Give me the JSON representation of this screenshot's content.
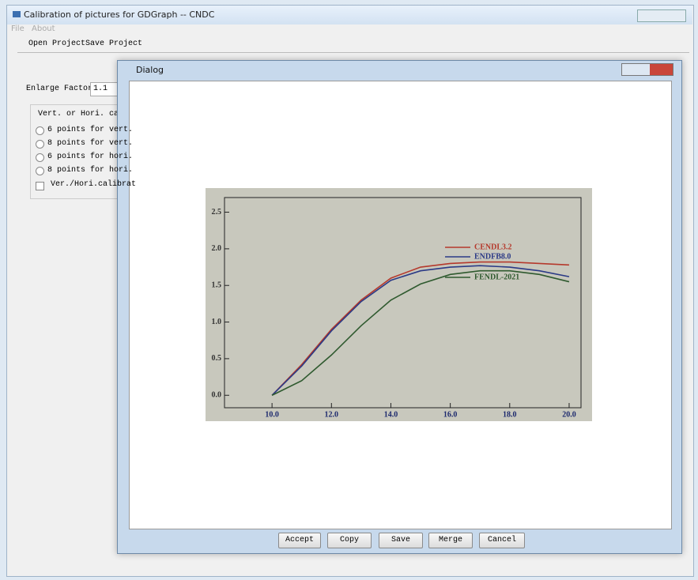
{
  "window": {
    "title": "Calibration of pictures for GDGraph -- CNDC",
    "menu": [
      "File",
      "About"
    ],
    "toolbar": [
      "Open Project",
      "Save Project"
    ]
  },
  "panel": {
    "enlarge_label": "Enlarge Factor:",
    "enlarge_value": "1.1",
    "group_title": "Vert. or Hori. calibra",
    "options": [
      "6 points for vert.",
      "8 points for vert.",
      "6 points for hori.",
      "8 points for hori."
    ],
    "checkbox": "Ver./Hori.calibrat"
  },
  "dialog": {
    "title": "Dialog",
    "buttons": [
      "Accept",
      "Copy",
      "Save",
      "Merge",
      "Cancel"
    ]
  },
  "chart_data": {
    "type": "line",
    "x": [
      10,
      11,
      12,
      13,
      14,
      15,
      16,
      17,
      18,
      19,
      20
    ],
    "series": [
      {
        "name": "CENDL3.2",
        "color": "#b5392c",
        "values": [
          0,
          0.42,
          0.9,
          1.3,
          1.6,
          1.75,
          1.8,
          1.82,
          1.82,
          1.8,
          1.78
        ]
      },
      {
        "name": "ENDFB8.0",
        "color": "#2b3a86",
        "values": [
          0,
          0.4,
          0.88,
          1.28,
          1.57,
          1.7,
          1.75,
          1.77,
          1.75,
          1.7,
          1.62
        ]
      },
      {
        "name": "FENDL-2021",
        "color": "#2f5a2f",
        "values": [
          0,
          0.2,
          0.55,
          0.95,
          1.3,
          1.52,
          1.65,
          1.7,
          1.7,
          1.65,
          1.55
        ]
      }
    ],
    "xlim": [
      8.4,
      20.4
    ],
    "ylim": [
      -0.17,
      2.7
    ],
    "xticks": [
      {
        "value": 10,
        "label": "10.0"
      },
      {
        "value": 12,
        "label": "12.0"
      },
      {
        "value": 14,
        "label": "14.0"
      },
      {
        "value": 16,
        "label": "16.0"
      },
      {
        "value": 18,
        "label": "18.0"
      },
      {
        "value": 20,
        "label": "20.0"
      }
    ],
    "yticks": [
      {
        "value": 0,
        "label": "0.0"
      },
      {
        "value": 0.5,
        "label": "0.5"
      },
      {
        "value": 1,
        "label": "1.0"
      },
      {
        "value": 1.5,
        "label": "1.5"
      },
      {
        "value": 2,
        "label": "2.0"
      },
      {
        "value": 2.5,
        "label": "2.5"
      }
    ]
  }
}
